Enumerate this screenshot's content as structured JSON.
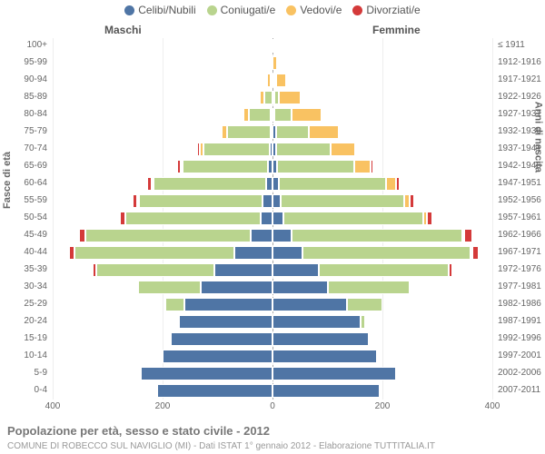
{
  "legend": [
    {
      "label": "Celibi/Nubili",
      "color": "#4f75a5"
    },
    {
      "label": "Coniugati/e",
      "color": "#b9d48e"
    },
    {
      "label": "Vedovi/e",
      "color": "#f9c262"
    },
    {
      "label": "Divorziati/e",
      "color": "#d43a3a"
    }
  ],
  "side_labels": {
    "male": "Maschi",
    "female": "Femmine"
  },
  "y_title_left": "Fasce di età",
  "y_title_right": "Anni di nascita",
  "x_ticks": [
    400,
    200,
    0,
    200,
    400
  ],
  "x_max": 400,
  "colors": {
    "celibi": "#4f75a5",
    "coniugati": "#b9d48e",
    "vedovi": "#f9c262",
    "divorziati": "#d43a3a",
    "grid": "#eeeeee",
    "axis_text": "#666666"
  },
  "fontsize": {
    "axis": 10,
    "legend": 12,
    "title": 13
  },
  "rows": [
    {
      "age": "100+",
      "birth": "≤ 1911",
      "m": [
        0,
        0,
        0,
        0
      ],
      "f": [
        0,
        0,
        1,
        0
      ]
    },
    {
      "age": "95-99",
      "birth": "1912-1916",
      "m": [
        0,
        0,
        2,
        0
      ],
      "f": [
        0,
        0,
        8,
        0
      ]
    },
    {
      "age": "90-94",
      "birth": "1917-1921",
      "m": [
        0,
        2,
        6,
        0
      ],
      "f": [
        1,
        2,
        18,
        0
      ]
    },
    {
      "age": "85-89",
      "birth": "1922-1926",
      "m": [
        0,
        15,
        8,
        0
      ],
      "f": [
        2,
        8,
        40,
        0
      ]
    },
    {
      "age": "80-84",
      "birth": "1927-1931",
      "m": [
        2,
        40,
        10,
        0
      ],
      "f": [
        4,
        30,
        55,
        0
      ]
    },
    {
      "age": "75-79",
      "birth": "1932-1936",
      "m": [
        3,
        80,
        10,
        0
      ],
      "f": [
        6,
        60,
        55,
        2
      ]
    },
    {
      "age": "70-74",
      "birth": "1937-1941",
      "m": [
        5,
        120,
        8,
        4
      ],
      "f": [
        6,
        100,
        45,
        3
      ]
    },
    {
      "age": "65-69",
      "birth": "1942-1946",
      "m": [
        8,
        155,
        4,
        6
      ],
      "f": [
        8,
        140,
        30,
        5
      ]
    },
    {
      "age": "60-64",
      "birth": "1947-1951",
      "m": [
        12,
        205,
        2,
        8
      ],
      "f": [
        12,
        195,
        18,
        7
      ]
    },
    {
      "age": "55-59",
      "birth": "1952-1956",
      "m": [
        18,
        225,
        1,
        8
      ],
      "f": [
        15,
        225,
        10,
        8
      ]
    },
    {
      "age": "50-54",
      "birth": "1957-1961",
      "m": [
        22,
        245,
        0,
        10
      ],
      "f": [
        20,
        255,
        6,
        10
      ]
    },
    {
      "age": "45-49",
      "birth": "1962-1966",
      "m": [
        40,
        300,
        0,
        12
      ],
      "f": [
        35,
        310,
        4,
        14
      ]
    },
    {
      "age": "40-44",
      "birth": "1967-1971",
      "m": [
        70,
        290,
        0,
        10
      ],
      "f": [
        55,
        305,
        2,
        12
      ]
    },
    {
      "age": "35-39",
      "birth": "1972-1976",
      "m": [
        105,
        215,
        0,
        8
      ],
      "f": [
        85,
        235,
        0,
        8
      ]
    },
    {
      "age": "30-34",
      "birth": "1977-1981",
      "m": [
        130,
        115,
        0,
        2
      ],
      "f": [
        100,
        150,
        0,
        3
      ]
    },
    {
      "age": "25-29",
      "birth": "1982-1986",
      "m": [
        160,
        35,
        0,
        0
      ],
      "f": [
        135,
        65,
        0,
        0
      ]
    },
    {
      "age": "20-24",
      "birth": "1987-1991",
      "m": [
        170,
        4,
        0,
        0
      ],
      "f": [
        160,
        8,
        0,
        0
      ]
    },
    {
      "age": "15-19",
      "birth": "1992-1996",
      "m": [
        185,
        0,
        0,
        0
      ],
      "f": [
        175,
        0,
        0,
        0
      ]
    },
    {
      "age": "10-14",
      "birth": "1997-2001",
      "m": [
        200,
        0,
        0,
        0
      ],
      "f": [
        190,
        0,
        0,
        0
      ]
    },
    {
      "age": "5-9",
      "birth": "2002-2006",
      "m": [
        240,
        0,
        0,
        0
      ],
      "f": [
        225,
        0,
        0,
        0
      ]
    },
    {
      "age": "0-4",
      "birth": "2007-2011",
      "m": [
        210,
        0,
        0,
        0
      ],
      "f": [
        195,
        0,
        0,
        0
      ]
    }
  ],
  "footer": {
    "title": "Popolazione per età, sesso e stato civile - 2012",
    "sub": "COMUNE DI ROBECCO SUL NAVIGLIO (MI) - Dati ISTAT 1° gennaio 2012 - Elaborazione TUTTITALIA.IT"
  }
}
